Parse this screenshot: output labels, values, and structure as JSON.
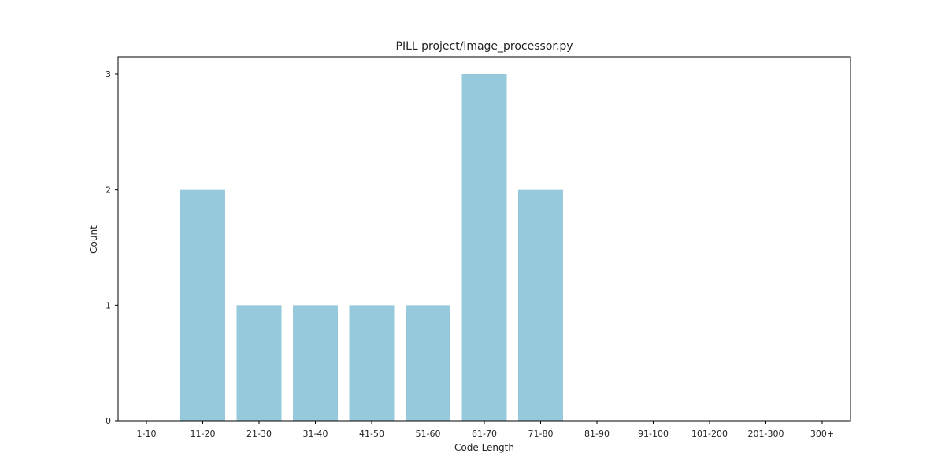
{
  "chart_data": {
    "type": "bar",
    "title": "PILL project/image_processor.py",
    "xlabel": "Code Length",
    "ylabel": "Count",
    "categories": [
      "1-10",
      "11-20",
      "21-30",
      "31-40",
      "41-50",
      "51-60",
      "61-70",
      "71-80",
      "81-90",
      "91-100",
      "101-200",
      "201-300",
      "300+"
    ],
    "values": [
      0,
      2,
      1,
      1,
      1,
      1,
      3,
      2,
      0,
      0,
      0,
      0,
      0
    ],
    "yticks": [
      "0",
      "1",
      "2",
      "3"
    ],
    "ylim": [
      0,
      3.15
    ],
    "grid": false,
    "legend": false,
    "colors": {
      "bar": "#96c9dc",
      "axis": "#000000",
      "text": "#222222"
    }
  }
}
